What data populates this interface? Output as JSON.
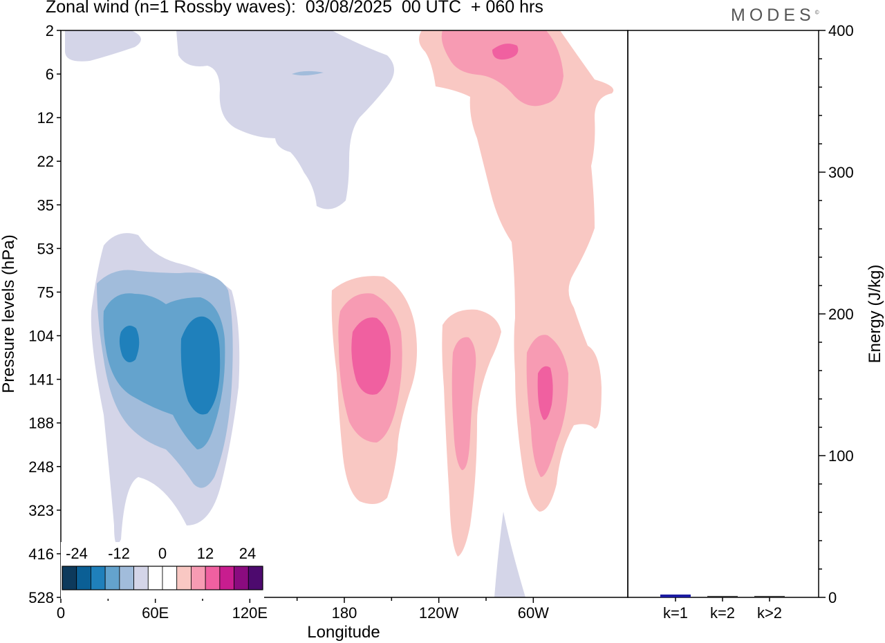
{
  "header": {
    "title": "Zonal wind (n=1 Rossby waves):  03/08/2025  00 UTC  + 060 hrs",
    "logo": "MODES",
    "logo_mark": "©"
  },
  "chart_data": [
    {
      "type": "heatmap",
      "title": "Zonal wind (n=1 Rossby waves):  03/08/2025  00 UTC  + 060 hrs",
      "xlabel": "Longitude",
      "ylabel": "Pressure levels (hPa)",
      "x_ticks": [
        "0",
        "60E",
        "120E",
        "180",
        "120W",
        "60W"
      ],
      "x_tick_values": [
        0,
        60,
        120,
        180,
        240,
        300
      ],
      "xlim": [
        0,
        360
      ],
      "y_ticks": [
        "2",
        "6",
        "12",
        "22",
        "35",
        "53",
        "75",
        "104",
        "141",
        "188",
        "248",
        "323",
        "416",
        "528"
      ],
      "colorbar": {
        "tick_labels": [
          "-24",
          "-12",
          "0",
          "12",
          "24"
        ],
        "colors": [
          "#0d3a5c",
          "#0b5f95",
          "#1f80bb",
          "#64a3cd",
          "#a1bcdb",
          "#d4d5e8",
          "#ffffff",
          "#ffffff",
          "#f9c8c3",
          "#f79bb3",
          "#f060a0",
          "#c81d8f",
          "#8a0b7f",
          "#4d0a6e"
        ]
      },
      "contours": [
        {
          "shade": "#d4d5e8",
          "description": "negative anomaly upper-left stratosphere"
        },
        {
          "shade": "#f9c8c3",
          "description": "positive anomaly near 80W-100W"
        }
      ]
    },
    {
      "type": "bar",
      "ylabel": "Energy (J/kg)",
      "categories": [
        "k=1",
        "k=2",
        "k>2"
      ],
      "values": [
        2,
        1,
        1
      ],
      "ylim": [
        0,
        400
      ],
      "y_ticks": [
        "0",
        "100",
        "200",
        "300",
        "400"
      ],
      "bar_colors": [
        "#1a1aa0",
        "#333333",
        "#333333"
      ]
    }
  ]
}
